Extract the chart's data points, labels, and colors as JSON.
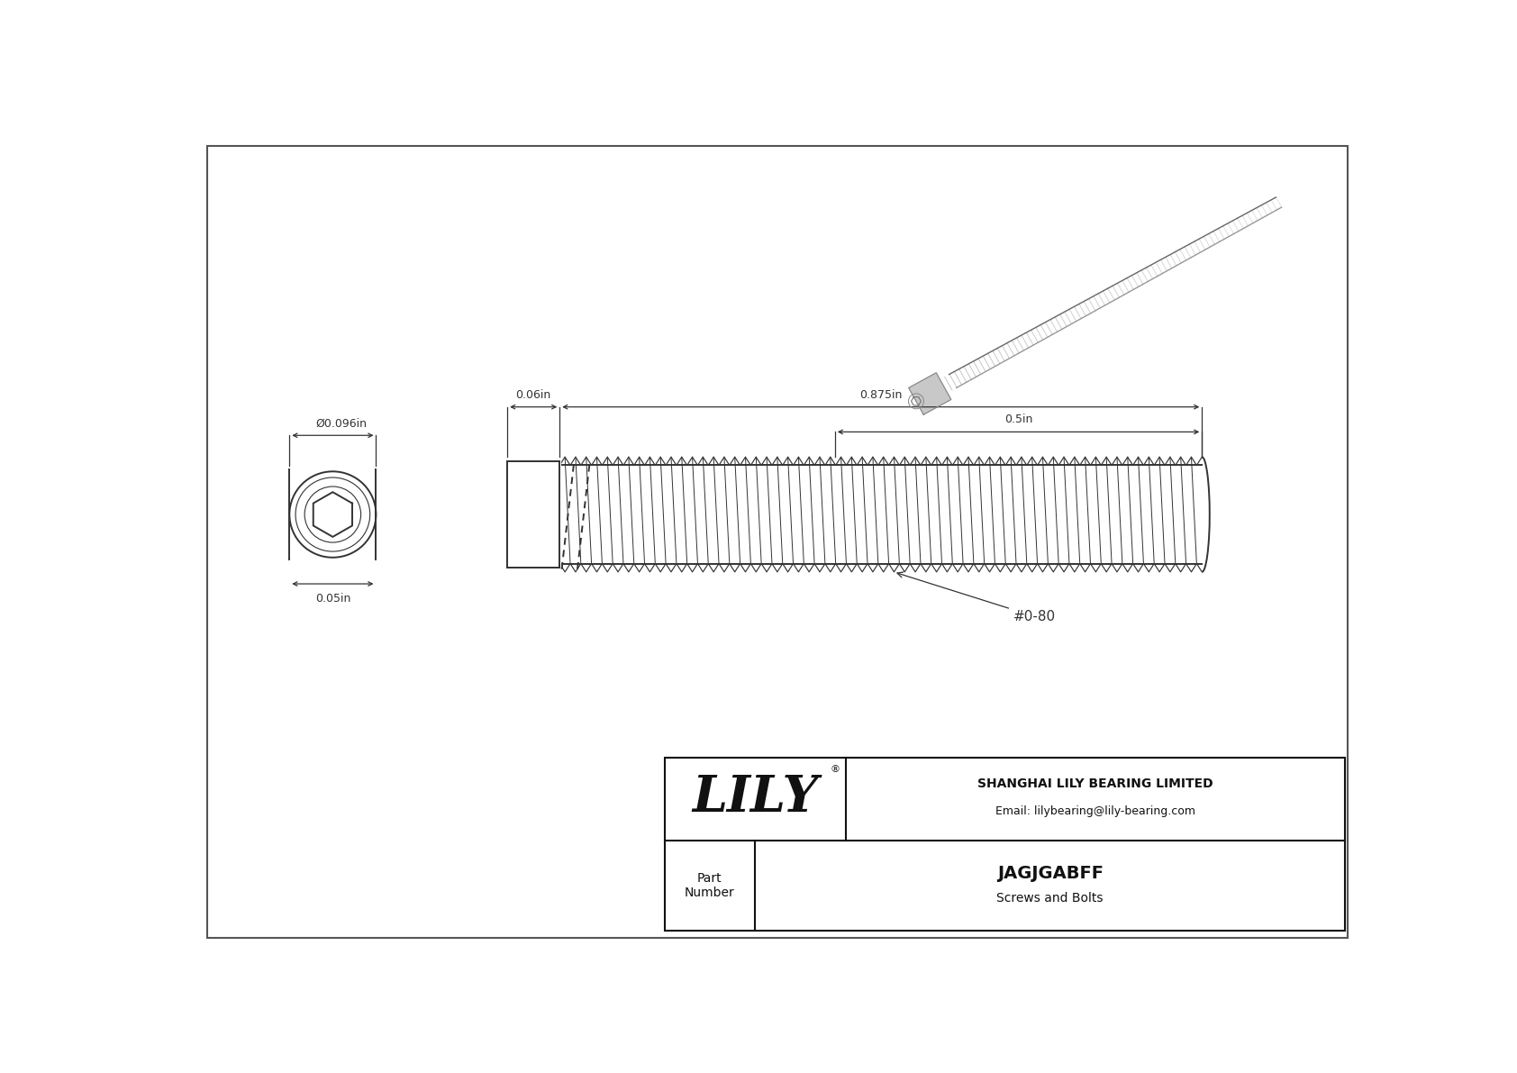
{
  "bg_color": "#ffffff",
  "border_color": "#333333",
  "line_color": "#333333",
  "dim_color": "#333333",
  "title": "JAGJGABFF",
  "subtitle": "Screws and Bolts",
  "company": "SHANGHAI LILY BEARING LIMITED",
  "email": "Email: lilybearing@lily-bearing.com",
  "part_label": "Part\nNumber",
  "dim_head_diam": "Ø0.096in",
  "dim_head_len": "0.06in",
  "dim_total_len": "0.875in",
  "dim_thread_len": "0.5in",
  "dim_width": "0.05in",
  "thread_label": "#0-80",
  "logo_text": "LILY",
  "logo_reg": "®"
}
